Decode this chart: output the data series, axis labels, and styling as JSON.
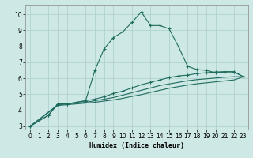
{
  "xlabel": "Humidex (Indice chaleur)",
  "background_color": "#cde8e5",
  "grid_color": "#aacfcc",
  "line_color": "#1e6b5e",
  "xlim": [
    -0.5,
    23.5
  ],
  "ylim": [
    2.8,
    10.6
  ],
  "yticks": [
    3,
    4,
    5,
    6,
    7,
    8,
    9,
    10
  ],
  "xticks": [
    0,
    1,
    2,
    3,
    4,
    5,
    6,
    7,
    8,
    9,
    10,
    11,
    12,
    13,
    14,
    15,
    16,
    17,
    18,
    19,
    20,
    21,
    22,
    23
  ],
  "line1_x": [
    0,
    2,
    3,
    4,
    5,
    6,
    7,
    8,
    9,
    10,
    11,
    12,
    13,
    14,
    15,
    16,
    17,
    18,
    19,
    20,
    21,
    22,
    23
  ],
  "line1_y": [
    3.0,
    3.7,
    4.4,
    4.4,
    4.5,
    4.6,
    6.5,
    7.85,
    8.55,
    8.9,
    9.5,
    10.15,
    9.3,
    9.3,
    9.1,
    8.0,
    6.75,
    6.55,
    6.5,
    6.35,
    6.4,
    6.4,
    6.1
  ],
  "line2_x": [
    0,
    2,
    3,
    4,
    5,
    6,
    7,
    8,
    9,
    10,
    11,
    12,
    13,
    14,
    15,
    16,
    17,
    18,
    19,
    20,
    21,
    22,
    23
  ],
  "line2_y": [
    3.0,
    3.7,
    4.4,
    4.4,
    4.5,
    4.6,
    4.7,
    4.85,
    5.05,
    5.2,
    5.4,
    5.6,
    5.75,
    5.9,
    6.05,
    6.15,
    6.2,
    6.3,
    6.35,
    6.4,
    6.42,
    6.42,
    6.1
  ],
  "line3_x": [
    0,
    3,
    4,
    5,
    6,
    7,
    8,
    9,
    10,
    11,
    12,
    13,
    14,
    15,
    16,
    17,
    18,
    19,
    20,
    21,
    22,
    23
  ],
  "line3_y": [
    3.0,
    4.35,
    4.4,
    4.45,
    4.5,
    4.6,
    4.7,
    4.8,
    4.95,
    5.1,
    5.25,
    5.4,
    5.55,
    5.65,
    5.75,
    5.85,
    5.92,
    5.97,
    6.02,
    6.07,
    6.1,
    6.1
  ],
  "line4_x": [
    0,
    3,
    4,
    5,
    6,
    7,
    8,
    9,
    10,
    11,
    12,
    13,
    14,
    15,
    16,
    17,
    18,
    19,
    20,
    21,
    22,
    23
  ],
  "line4_y": [
    3.0,
    4.3,
    4.35,
    4.4,
    4.45,
    4.5,
    4.58,
    4.65,
    4.75,
    4.87,
    4.98,
    5.12,
    5.25,
    5.38,
    5.48,
    5.58,
    5.66,
    5.72,
    5.78,
    5.84,
    5.9,
    6.1
  ],
  "xlabel_fontsize": 6.0,
  "tick_fontsize": 5.5,
  "linewidth": 0.8,
  "markersize": 3.0
}
